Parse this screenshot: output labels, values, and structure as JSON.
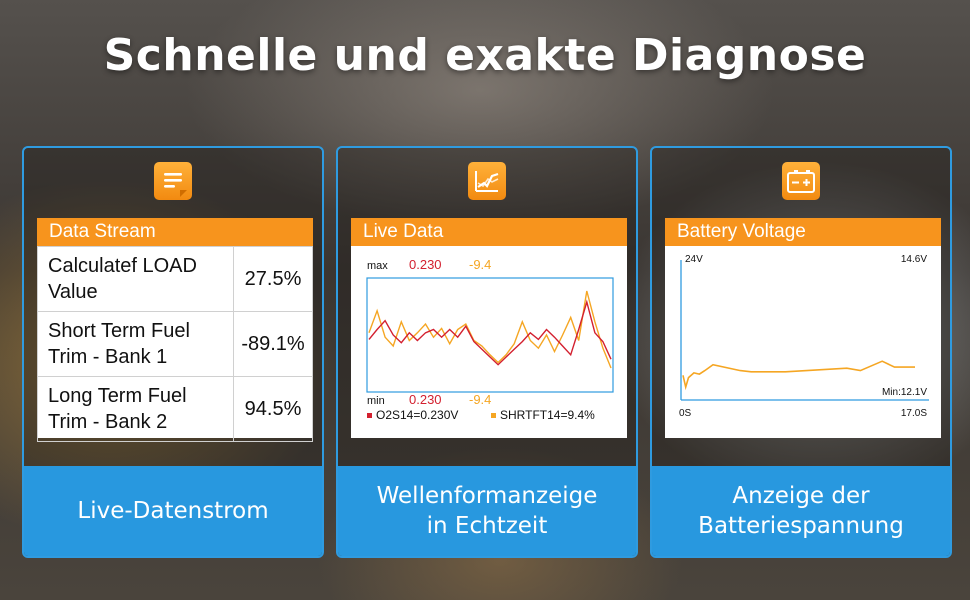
{
  "headline": "Schnelle und exakte Diagnose",
  "colors": {
    "accent": "#f7941d",
    "footer": "#2898df",
    "series_red": "#d3202f",
    "series_orange": "#f5a623"
  },
  "cards": [
    {
      "icon": "document-icon",
      "panel_title": "Data Stream",
      "rows": [
        {
          "name": "Calculatef LOAD Value",
          "value": "27.5%"
        },
        {
          "name": "Short Term Fuel Trim - Bank 1",
          "value": "-89.1%"
        },
        {
          "name": "Long Term Fuel Trim - Bank 2",
          "value": "94.5%"
        }
      ],
      "footer_lines": [
        "Live-Datenstrom"
      ]
    },
    {
      "icon": "waveform-icon",
      "panel_title": "Live Data",
      "max_label": "max",
      "max_red": "0.230",
      "max_orange": "-9.4",
      "min_label": "min",
      "min_red": "0.230",
      "min_orange": "-9.4",
      "legend_red": "O2S14=0.230V",
      "legend_orange": "SHRTFT14=9.4%",
      "footer_lines": [
        "Wellenformanzeige",
        "in Echtzeit"
      ]
    },
    {
      "icon": "battery-icon",
      "panel_title": "Battery Voltage",
      "y_top": "24V",
      "top_right": "14.6V",
      "min_text": "Min:12.1V",
      "x_start": "0S",
      "x_end": "17.0S",
      "footer_lines": [
        "Anzeige der",
        "Batteriespannung"
      ]
    }
  ],
  "chart_data": [
    {
      "type": "line",
      "x": [
        0,
        1,
        2,
        3,
        4,
        5,
        6,
        7,
        8,
        9,
        10,
        11,
        12,
        13,
        14,
        15,
        16,
        17,
        18,
        19,
        20,
        21,
        22,
        23,
        24,
        25,
        26,
        27,
        28,
        29,
        30
      ],
      "series": [
        {
          "name": "O2S14=0.230V",
          "color": "#d3202f",
          "values": [
            0.46,
            0.55,
            0.63,
            0.5,
            0.43,
            0.52,
            0.45,
            0.52,
            0.55,
            0.48,
            0.55,
            0.48,
            0.58,
            0.44,
            0.37,
            0.3,
            0.23,
            0.3,
            0.37,
            0.44,
            0.52,
            0.46,
            0.55,
            0.48,
            0.4,
            0.32,
            0.55,
            0.8,
            0.52,
            0.44,
            0.28
          ]
        },
        {
          "name": "SHRTFT14=9.4%",
          "color": "#f5a623",
          "values": [
            0.52,
            0.72,
            0.48,
            0.4,
            0.62,
            0.45,
            0.52,
            0.6,
            0.48,
            0.56,
            0.42,
            0.55,
            0.6,
            0.45,
            0.4,
            0.32,
            0.25,
            0.32,
            0.42,
            0.62,
            0.45,
            0.38,
            0.5,
            0.35,
            0.5,
            0.66,
            0.45,
            0.9,
            0.62,
            0.38,
            0.2
          ]
        }
      ]
    },
    {
      "type": "line",
      "title": "Battery Voltage",
      "x": [
        0,
        0.2,
        0.4,
        0.8,
        1.2,
        1.6,
        2.2,
        4.2,
        5.0,
        7.5,
        12.0,
        13.0,
        14.6,
        15.5,
        17.0
      ],
      "series": [
        {
          "name": "Voltage",
          "color": "#f5a623",
          "values": [
            14.2,
            13.2,
            14.0,
            14.4,
            14.3,
            14.6,
            15.1,
            14.6,
            14.5,
            14.5,
            14.8,
            14.6,
            15.4,
            14.9,
            14.9
          ]
        }
      ],
      "ylim": [
        12.1,
        24
      ],
      "xlim": [
        0,
        17
      ]
    }
  ]
}
